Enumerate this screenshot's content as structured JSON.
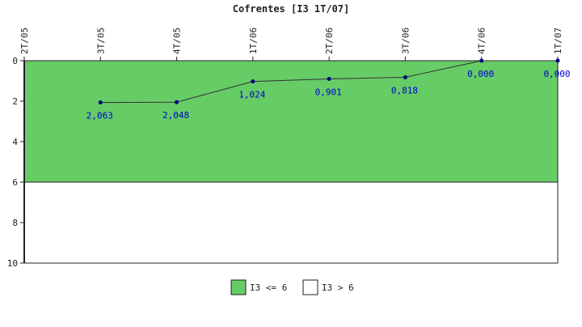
{
  "chart_data": {
    "type": "line",
    "title": "Cofrentes [I3 1T/07]",
    "categories": [
      "2T/05",
      "3T/05",
      "4T/05",
      "1T/06",
      "2T/06",
      "3T/06",
      "4T/06",
      "1T/07"
    ],
    "series": [
      {
        "values": [
          null,
          2.063,
          2.048,
          1.024,
          0.901,
          0.818,
          0.0,
          0.0
        ],
        "labels": [
          "",
          "2,063",
          "2,048",
          "1,024",
          "0,901",
          "0,818",
          "0,000",
          "0,000"
        ],
        "color": "#000080"
      }
    ],
    "ylim": [
      0,
      10
    ],
    "y_inverted": true,
    "yticks": [
      0,
      2,
      4,
      6,
      8,
      10
    ],
    "ytick_labels": [
      "0",
      "2",
      "4",
      "6",
      "8",
      "10"
    ],
    "x_tick_position": "top",
    "x_tick_rotation": "vertical",
    "bands": [
      {
        "from": 0,
        "to": 6,
        "color": "#66cc66",
        "label": "I3 <= 6"
      },
      {
        "from": 6,
        "to": 10,
        "color": "#ffffff",
        "label": "I3 > 6"
      }
    ],
    "legend_position": "bottom-center"
  }
}
